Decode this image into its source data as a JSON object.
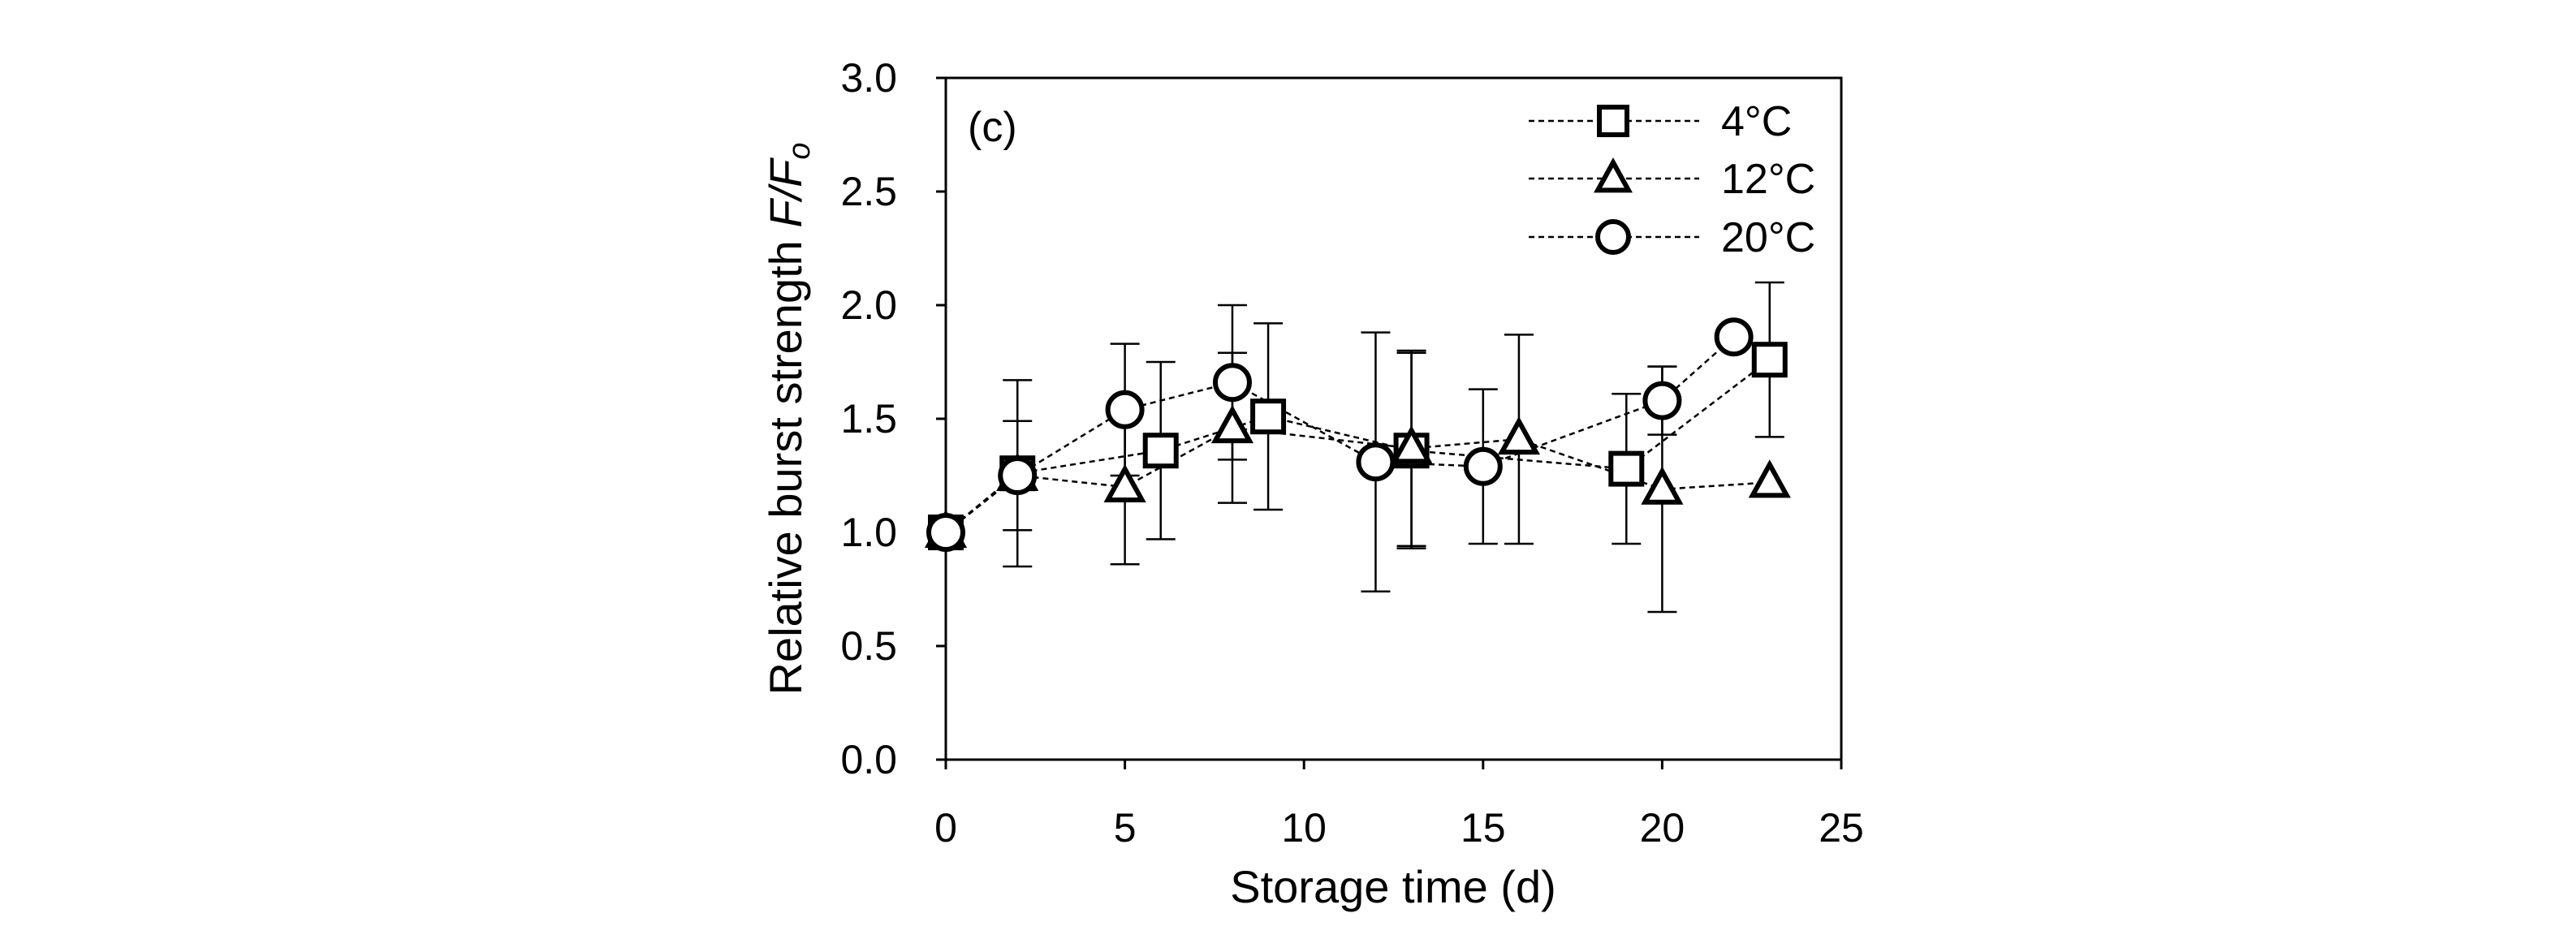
{
  "chart_data": {
    "type": "scatter",
    "panel_label": "(c)",
    "title": "",
    "xlabel": "Storage time (d)",
    "ylabel": "Relative burst strength F/Fo",
    "ylabel_parts": {
      "prefix": "Relative burst strength ",
      "italic_main": "F/F",
      "italic_sub": "o"
    },
    "xlim": [
      0,
      25
    ],
    "ylim": [
      0.0,
      3.0
    ],
    "x_ticks": [
      0,
      5,
      10,
      15,
      20,
      25
    ],
    "x_tick_labels": [
      "0",
      "5",
      "10",
      "15",
      "20",
      "25"
    ],
    "y_ticks": [
      0.0,
      0.5,
      1.0,
      1.5,
      2.0,
      2.5,
      3.0
    ],
    "y_tick_labels": [
      "0.0",
      "0.5",
      "1.0",
      "1.5",
      "2.0",
      "2.5",
      "3.0"
    ],
    "grid": false,
    "legend_position": "top-right",
    "line_style": "dashed",
    "series": [
      {
        "name": "4°C",
        "marker": "square",
        "points": [
          {
            "x": 0,
            "y": 1.0,
            "err": null
          },
          {
            "x": 2,
            "y": 1.26,
            "err": 0.41
          },
          {
            "x": 6,
            "y": 1.36,
            "err": 0.39
          },
          {
            "x": 9,
            "y": 1.51,
            "err": 0.41
          },
          {
            "x": 13,
            "y": 1.36,
            "err": 0.43
          },
          {
            "x": 19,
            "y": 1.28,
            "err": 0.33
          },
          {
            "x": 23,
            "y": 1.76,
            "err": 0.34
          }
        ]
      },
      {
        "name": "12°C",
        "marker": "triangle",
        "points": [
          {
            "x": 0,
            "y": 1.0,
            "err": null
          },
          {
            "x": 2,
            "y": 1.25,
            "err": 0.24
          },
          {
            "x": 5,
            "y": 1.2,
            "err": 0.34
          },
          {
            "x": 8,
            "y": 1.46,
            "err": 0.33
          },
          {
            "x": 13,
            "y": 1.37,
            "err": 0.43
          },
          {
            "x": 16,
            "y": 1.41,
            "err": 0.46
          },
          {
            "x": 20,
            "y": 1.19,
            "err": 0.54
          },
          {
            "x": 23,
            "y": 1.22,
            "err": null
          }
        ]
      },
      {
        "name": "20°C",
        "marker": "circle",
        "points": [
          {
            "x": 0,
            "y": 1.0,
            "err": null
          },
          {
            "x": 2,
            "y": 1.25,
            "err": null
          },
          {
            "x": 5,
            "y": 1.54,
            "err": 0.29
          },
          {
            "x": 8,
            "y": 1.66,
            "err": 0.34
          },
          {
            "x": 12,
            "y": 1.31,
            "err": 0.57
          },
          {
            "x": 15,
            "y": 1.29,
            "err": 0.34
          },
          {
            "x": 20,
            "y": 1.58,
            "err": 0.15
          },
          {
            "x": 22,
            "y": 1.86,
            "err": null
          }
        ]
      }
    ]
  }
}
